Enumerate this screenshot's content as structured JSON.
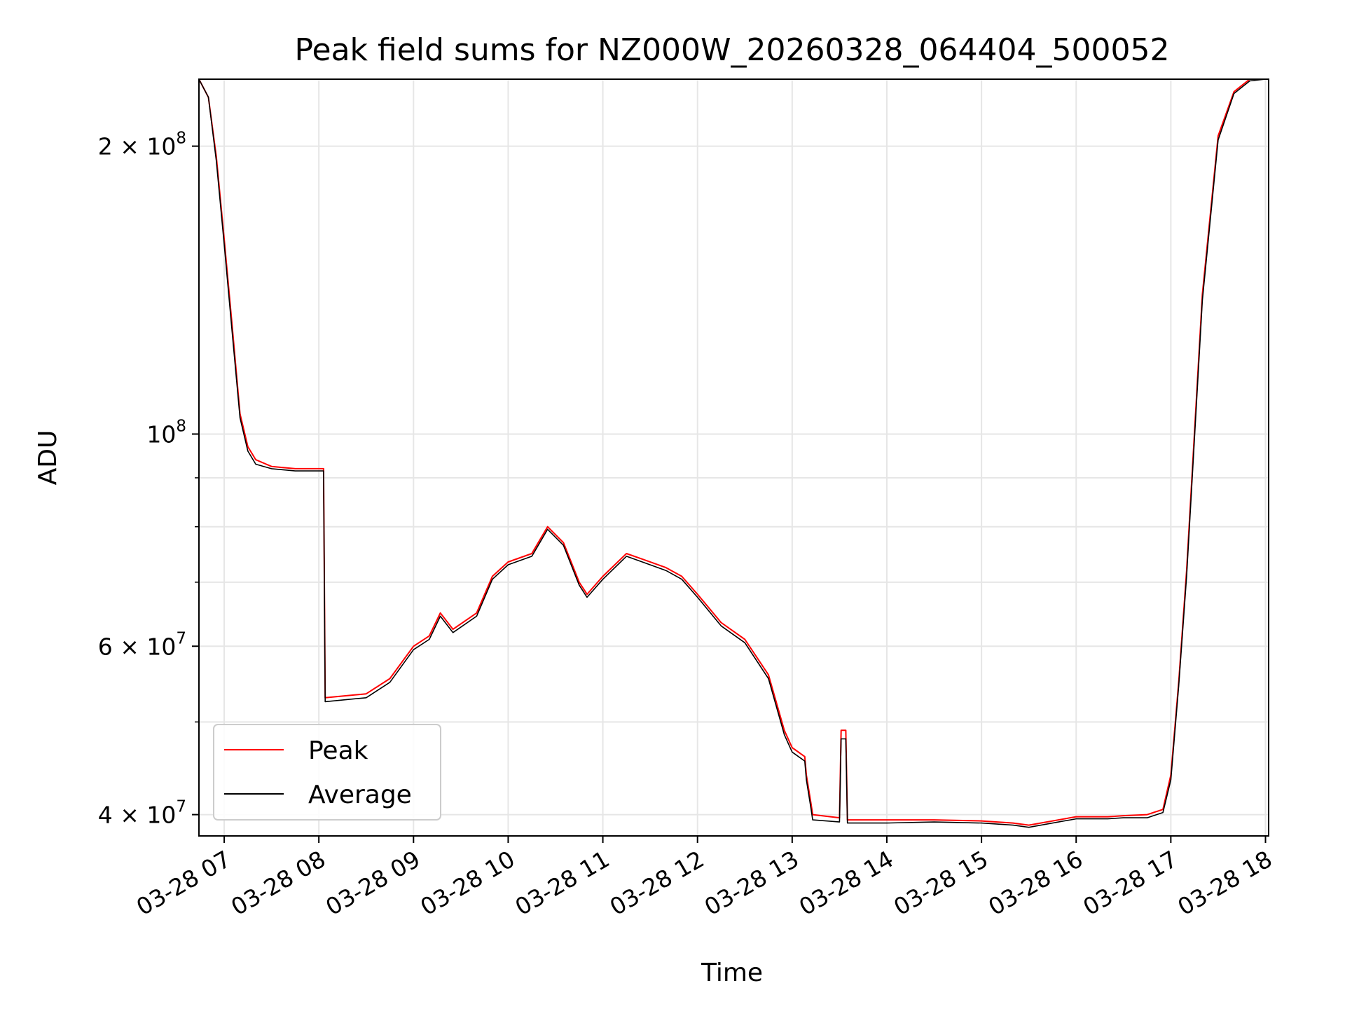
{
  "chart_data": {
    "type": "line",
    "title": "Peak field sums for NZ000W_20260328_064404_500052",
    "xlabel": "Time",
    "ylabel": "ADU",
    "y_scale": "log",
    "ylim": [
      38000000,
      235000000
    ],
    "xlim": [
      "03-28 06:44",
      "03-28 18:02"
    ],
    "grid": true,
    "legend_position": "lower-left",
    "x_ticks": [
      "03-28 07",
      "03-28 08",
      "03-28 09",
      "03-28 10",
      "03-28 11",
      "03-28 12",
      "03-28 13",
      "03-28 14",
      "03-28 15",
      "03-28 16",
      "03-28 17",
      "03-28 18"
    ],
    "y_ticks": [
      {
        "value": 200000000,
        "label": "2 × 10^8",
        "mantissa": "2 × 10",
        "exp": "8"
      },
      {
        "value": 100000000,
        "label": "10^8",
        "mantissa": "10",
        "exp": "8"
      },
      {
        "value": 60000000,
        "label": "6 × 10^7",
        "mantissa": "6 × 10",
        "exp": "7"
      },
      {
        "value": 40000000,
        "label": "4 × 10^7",
        "mantissa": "4 × 10",
        "exp": "7"
      }
    ],
    "y_minor_ticks": [
      50000000,
      70000000,
      80000000,
      90000000
    ],
    "series": [
      {
        "name": "Peak",
        "color": "#ff0000",
        "x": [
          "03-28 06:44",
          "03-28 06:50",
          "03-28 06:55",
          "03-28 07:00",
          "03-28 07:05",
          "03-28 07:10",
          "03-28 07:15",
          "03-28 07:20",
          "03-28 07:30",
          "03-28 07:45",
          "03-28 08:00",
          "03-28 08:03",
          "03-28 08:04",
          "03-28 08:30",
          "03-28 08:45",
          "03-28 09:00",
          "03-28 09:10",
          "03-28 09:17",
          "03-28 09:25",
          "03-28 09:40",
          "03-28 09:50",
          "03-28 10:00",
          "03-28 10:15",
          "03-28 10:25",
          "03-28 10:35",
          "03-28 10:45",
          "03-28 10:50",
          "03-28 11:00",
          "03-28 11:15",
          "03-28 11:25",
          "03-28 11:40",
          "03-28 11:50",
          "03-28 12:00",
          "03-28 12:15",
          "03-28 12:30",
          "03-28 12:45",
          "03-28 12:55",
          "03-28 13:00",
          "03-28 13:08",
          "03-28 13:09",
          "03-28 13:12",
          "03-28 13:13",
          "03-28 13:30",
          "03-28 13:31",
          "03-28 13:34",
          "03-28 13:35",
          "03-28 14:00",
          "03-28 14:30",
          "03-28 15:00",
          "03-28 15:20",
          "03-28 15:30",
          "03-28 16:00",
          "03-28 16:20",
          "03-28 16:30",
          "03-28 16:45",
          "03-28 16:55",
          "03-28 17:00",
          "03-28 17:05",
          "03-28 17:10",
          "03-28 17:20",
          "03-28 17:30",
          "03-28 17:40",
          "03-28 17:50",
          "03-28 18:00",
          "03-28 18:02"
        ],
        "values": [
          235000000,
          225000000,
          195000000,
          160000000,
          130000000,
          105000000,
          97000000,
          94000000,
          92500000,
          92000000,
          92000000,
          92000000,
          53000000,
          53500000,
          55500000,
          60000000,
          61500000,
          65000000,
          62500000,
          65000000,
          71000000,
          73500000,
          75000000,
          80000000,
          77000000,
          70000000,
          68000000,
          71000000,
          75000000,
          74000000,
          72500000,
          71000000,
          68000000,
          63500000,
          61000000,
          56000000,
          49000000,
          47000000,
          46000000,
          44000000,
          41000000,
          40000000,
          39700000,
          49000000,
          49000000,
          39500000,
          39500000,
          39500000,
          39400000,
          39200000,
          39000000,
          39800000,
          39800000,
          39900000,
          40000000,
          40500000,
          44000000,
          55000000,
          72000000,
          140000000,
          205000000,
          228000000,
          235000000,
          235000000,
          235000000
        ]
      },
      {
        "name": "Average",
        "color": "#000000",
        "x": [
          "03-28 06:44",
          "03-28 06:50",
          "03-28 06:55",
          "03-28 07:00",
          "03-28 07:05",
          "03-28 07:10",
          "03-28 07:15",
          "03-28 07:20",
          "03-28 07:30",
          "03-28 07:45",
          "03-28 08:00",
          "03-28 08:03",
          "03-28 08:04",
          "03-28 08:30",
          "03-28 08:45",
          "03-28 09:00",
          "03-28 09:10",
          "03-28 09:17",
          "03-28 09:25",
          "03-28 09:40",
          "03-28 09:50",
          "03-28 10:00",
          "03-28 10:15",
          "03-28 10:25",
          "03-28 10:35",
          "03-28 10:45",
          "03-28 10:50",
          "03-28 11:00",
          "03-28 11:15",
          "03-28 11:25",
          "03-28 11:40",
          "03-28 11:50",
          "03-28 12:00",
          "03-28 12:15",
          "03-28 12:30",
          "03-28 12:45",
          "03-28 12:55",
          "03-28 13:00",
          "03-28 13:08",
          "03-28 13:09",
          "03-28 13:12",
          "03-28 13:13",
          "03-28 13:30",
          "03-28 13:31",
          "03-28 13:34",
          "03-28 13:35",
          "03-28 14:00",
          "03-28 14:30",
          "03-28 15:00",
          "03-28 15:20",
          "03-28 15:30",
          "03-28 16:00",
          "03-28 16:20",
          "03-28 16:30",
          "03-28 16:45",
          "03-28 16:55",
          "03-28 17:00",
          "03-28 17:05",
          "03-28 17:10",
          "03-28 17:20",
          "03-28 17:30",
          "03-28 17:40",
          "03-28 17:50",
          "03-28 18:00",
          "03-28 18:02"
        ],
        "values": [
          235000000,
          225000000,
          193000000,
          158000000,
          128000000,
          104000000,
          96000000,
          93000000,
          92000000,
          91500000,
          91500000,
          91500000,
          52500000,
          53000000,
          55000000,
          59500000,
          61000000,
          64500000,
          62000000,
          64500000,
          70500000,
          73000000,
          74500000,
          79500000,
          76500000,
          69500000,
          67500000,
          70500000,
          74500000,
          73500000,
          72000000,
          70500000,
          67500000,
          63000000,
          60500000,
          55500000,
          48500000,
          46500000,
          45500000,
          43500000,
          40500000,
          39500000,
          39300000,
          48000000,
          48000000,
          39200000,
          39200000,
          39300000,
          39200000,
          39000000,
          38800000,
          39600000,
          39600000,
          39700000,
          39700000,
          40200000,
          43500000,
          54500000,
          71000000,
          138000000,
          203000000,
          227000000,
          234000000,
          235000000,
          235000000
        ]
      }
    ]
  }
}
